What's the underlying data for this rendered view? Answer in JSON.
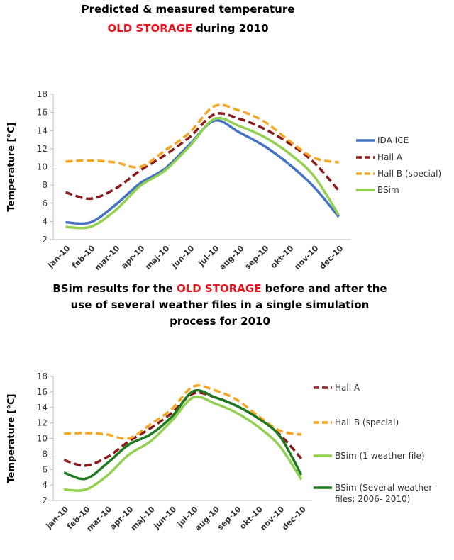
{
  "chart_data": [
    {
      "type": "line",
      "title_lines": [
        [
          {
            "text": "Predicted & measured temperature",
            "color": "#000000"
          }
        ],
        [
          {
            "text": "OLD STORAGE",
            "color": "#e8141e"
          },
          {
            "text": " during 2010",
            "color": "#000000"
          }
        ]
      ],
      "y_label": "Temperature [°C]",
      "categories": [
        "jan-10",
        "feb-10",
        "mar-10",
        "apr-10",
        "maj-10",
        "jun-10",
        "jul-10",
        "aug-10",
        "sep-10",
        "okt-10",
        "nov-10",
        "dec-10"
      ],
      "ylim": [
        2,
        18
      ],
      "yticks": [
        2,
        4,
        6,
        8,
        10,
        12,
        14,
        16,
        18
      ],
      "grid": false,
      "legend": "right",
      "series": [
        {
          "name": "IDA ICE",
          "color": "#4472c4",
          "dashed": false,
          "values": [
            3.9,
            3.9,
            5.8,
            8.2,
            9.8,
            12.5,
            15.1,
            13.8,
            12.3,
            10.3,
            7.8,
            4.5
          ]
        },
        {
          "name": "Hall A",
          "color": "#8b1a1a",
          "dashed": true,
          "values": [
            7.2,
            6.5,
            7.6,
            9.6,
            11.3,
            13.3,
            15.8,
            15.3,
            14.2,
            12.6,
            10.5,
            7.4
          ]
        },
        {
          "name": "Hall B (special)",
          "color": "#f5a623",
          "dashed": true,
          "values": [
            10.6,
            10.7,
            10.5,
            10.0,
            11.8,
            13.8,
            16.7,
            16.2,
            15.0,
            12.9,
            11.0,
            10.5
          ]
        },
        {
          "name": "BSim",
          "color": "#92d050",
          "dashed": false,
          "values": [
            3.4,
            3.4,
            5.2,
            7.9,
            9.6,
            12.3,
            15.3,
            14.5,
            13.3,
            11.5,
            9.0,
            4.7
          ]
        }
      ]
    },
    {
      "type": "line",
      "title_lines": [
        [
          {
            "text": "BSim results for the ",
            "color": "#000000"
          },
          {
            "text": "OLD STORAGE",
            "color": "#e8141e"
          },
          {
            "text": " before and after the",
            "color": "#000000"
          }
        ],
        [
          {
            "text": "use of several weather files in a single simulation",
            "color": "#000000"
          }
        ],
        [
          {
            "text": "process for 2010",
            "color": "#000000"
          }
        ]
      ],
      "y_label": "Temperature [°C]",
      "categories": [
        "jan-10",
        "feb-10",
        "mar-10",
        "apr-10",
        "maj-10",
        "jun-10",
        "jul-10",
        "aug-10",
        "sep-10",
        "okt-10",
        "nov-10",
        "dec-10"
      ],
      "ylim": [
        2,
        18
      ],
      "yticks": [
        2,
        4,
        6,
        8,
        10,
        12,
        14,
        16,
        18
      ],
      "grid": false,
      "legend": "right",
      "series": [
        {
          "name": "Hall A",
          "color": "#8b1a1a",
          "dashed": true,
          "values": [
            7.2,
            6.5,
            7.6,
            9.6,
            11.3,
            13.3,
            15.8,
            15.3,
            14.2,
            12.6,
            10.5,
            7.4
          ]
        },
        {
          "name": "Hall B (special)",
          "color": "#f5a623",
          "dashed": true,
          "values": [
            10.6,
            10.7,
            10.5,
            10.0,
            11.8,
            13.8,
            16.7,
            16.2,
            15.0,
            12.9,
            11.0,
            10.5
          ]
        },
        {
          "name": "BSim (1 weather file)",
          "color": "#92d050",
          "dashed": false,
          "values": [
            3.4,
            3.4,
            5.2,
            7.9,
            9.6,
            12.3,
            15.3,
            14.5,
            13.3,
            11.5,
            9.0,
            4.7
          ]
        },
        {
          "name": "BSim (Several weather files: 2006- 2010)",
          "color": "#1e7a1e",
          "dashed": false,
          "values": [
            5.6,
            4.8,
            6.8,
            9.2,
            10.5,
            12.8,
            16.1,
            15.3,
            14.2,
            12.6,
            10.3,
            5.3
          ]
        }
      ]
    }
  ]
}
